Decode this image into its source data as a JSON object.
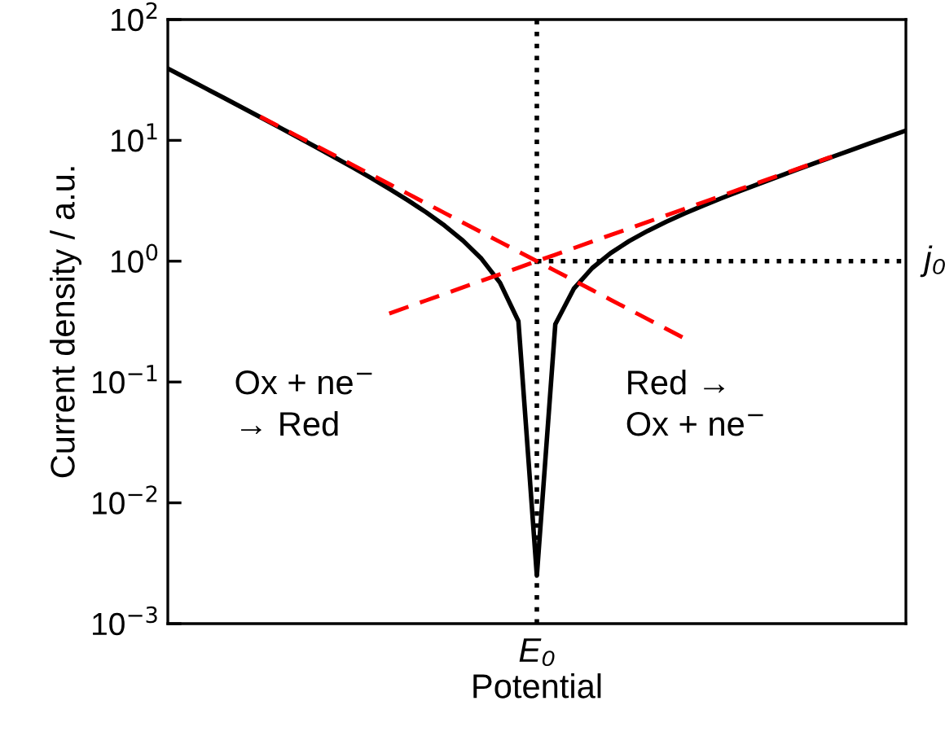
{
  "chart_data": {
    "type": "line",
    "xlabel": "Potential",
    "ylabel": "Current density / a.u.",
    "categories": [
      null,
      null,
      null,
      null,
      null,
      null,
      null,
      null,
      null,
      null,
      null,
      null,
      null,
      null,
      null,
      null,
      null,
      null,
      null,
      null,
      "E₀",
      null,
      null,
      null,
      null,
      null,
      null,
      null,
      null,
      null,
      null,
      null,
      null,
      null,
      null,
      null,
      null,
      null,
      null,
      null,
      null
    ],
    "series": [
      {
        "color": "#000000",
        "line_style": "solid",
        "values": [
          39.36,
          32.73,
          27.2,
          22.61,
          18.77,
          15.59,
          12.93,
          10.7,
          8.845,
          7.293,
          5.992,
          4.9,
          3.98,
          3.201,
          2.538,
          1.97,
          1.478,
          1.047,
          0.665,
          0.319,
          0.0025,
          0.301,
          0.591,
          0.877,
          1.167,
          1.466,
          1.78,
          2.116,
          2.48,
          2.879,
          3.318,
          3.807,
          4.351,
          4.961,
          5.648,
          6.421,
          7.291,
          8.275,
          9.386,
          10.64,
          12.06
        ]
      },
      {
        "color": "#ff0000",
        "line_style": "dashed",
        "values": [
          null,
          null,
          null,
          null,
          null,
          15.74,
          13.1,
          10.9,
          9.069,
          7.547,
          6.28,
          5.226,
          4.349,
          3.619,
          3.0115,
          2.506,
          2.0854,
          1.7354,
          1.4441,
          1.2017,
          1.0,
          0.8322,
          0.6925,
          0.5762,
          0.4795,
          0.399,
          0.3321,
          0.2763,
          0.2299,
          null,
          null,
          null,
          null,
          null,
          null,
          null,
          null,
          null,
          null,
          null,
          null
        ]
      },
      {
        "color": "#ff0000",
        "line_style": "dashed",
        "values": [
          null,
          null,
          null,
          null,
          null,
          null,
          null,
          null,
          null,
          null,
          null,
          null,
          0.369,
          0.4181,
          0.4735,
          0.5363,
          0.6075,
          0.6881,
          0.7794,
          0.8828,
          1.0,
          1.1327,
          1.283,
          1.4533,
          1.6462,
          1.8646,
          2.112,
          2.392,
          2.71,
          3.07,
          3.477,
          3.939,
          4.461,
          5.053,
          5.724,
          6.484,
          7.344,
          null,
          null,
          null,
          null
        ]
      }
    ],
    "log": "y",
    "ylim": [
      0.001,
      100
    ],
    "yticks": [
      {
        "value": 0.001,
        "label": "10$^{−3}$"
      },
      {
        "value": 0.01,
        "label": "10$^{−2}$"
      },
      {
        "value": 0.1,
        "label": "10$^{−1}$"
      },
      {
        "value": 1,
        "label": "10$^{0}$"
      },
      {
        "value": 10,
        "label": "10$^{1}$"
      },
      {
        "value": 100,
        "label": "10$^{2}$"
      }
    ],
    "ref_lines": [
      {
        "axis": "x",
        "value": "E₀",
        "line_style": "dotted",
        "color": "#000000"
      },
      {
        "axis": "y",
        "value": 1,
        "label": "j₀",
        "line_style": "dotted",
        "color": "#000000"
      }
    ],
    "annotations": [
      "Ox + ne$^{−}$\n→ Red",
      "Red →\nOx + ne$^{−}$"
    ],
    "grid": false,
    "legend": false
  }
}
